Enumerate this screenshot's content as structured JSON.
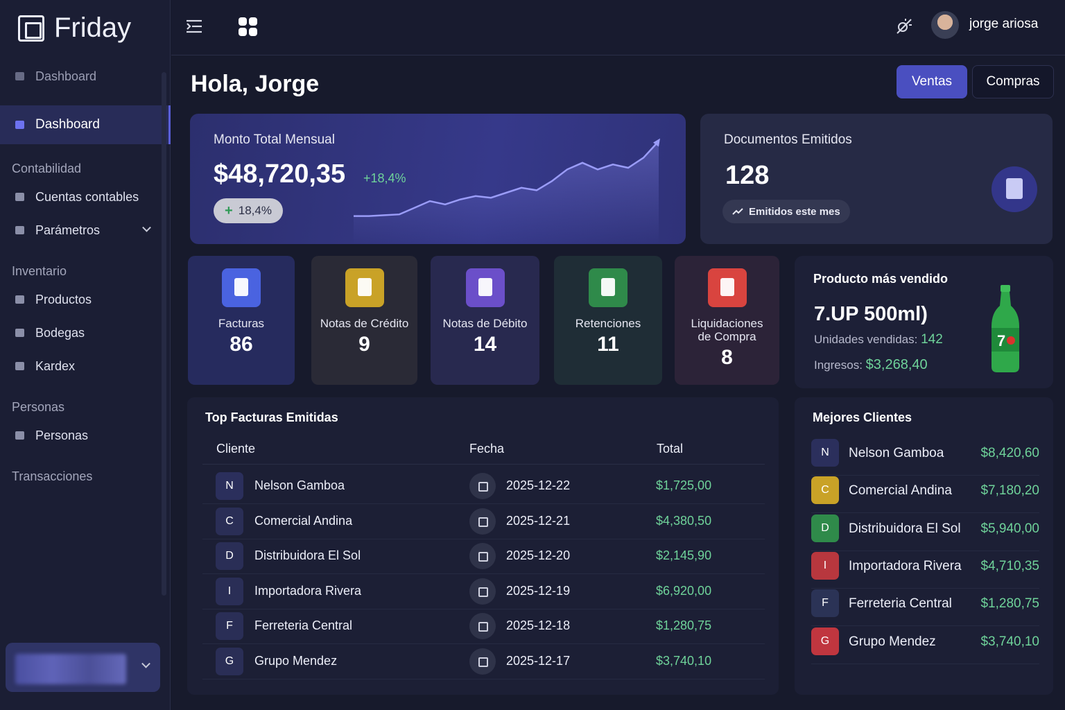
{
  "brand": "Friday",
  "sidebar": {
    "top": "Dashboard",
    "active": "Dashboard",
    "groups": [
      {
        "title": "Contabilidad",
        "items": [
          "Cuentas contables",
          "Parámetros"
        ]
      },
      {
        "title": "Inventario",
        "items": [
          "Productos",
          "Bodegas",
          "Kardex"
        ]
      },
      {
        "title": "Personas",
        "items": [
          "Personas"
        ]
      },
      {
        "title": "Transacciones",
        "items": []
      }
    ]
  },
  "topbar": {
    "user": "jorge ariosa"
  },
  "header": {
    "greeting": "Hola, Jorge",
    "tabs": [
      "Ventas",
      "Compras"
    ]
  },
  "monthly_card": {
    "title": "Monto Total Mensual",
    "amount": "$48,720,35",
    "change": "+18,4%",
    "badge": "18,4%",
    "trend": [
      2,
      2,
      3,
      4,
      12,
      20,
      16,
      22,
      26,
      24,
      30,
      36,
      33,
      44,
      58,
      66,
      58,
      64,
      60,
      72,
      92
    ],
    "trend_ylim": [
      0,
      100
    ]
  },
  "documents_card": {
    "title": "Documentos Emitidos",
    "count": "128",
    "note": "Emitidos este mes"
  },
  "stats": [
    {
      "label": "Facturas",
      "value": "86"
    },
    {
      "label": "Notas de Crédito",
      "value": "9"
    },
    {
      "label": "Notas de Débito",
      "value": "14"
    },
    {
      "label": "Retenciones",
      "value": "11"
    },
    {
      "label": "Liquidaciones de Compra",
      "value": "8"
    }
  ],
  "top_product": {
    "title": "Producto más vendido",
    "name": "7.UP 500ml)",
    "units_label": "Unidades vendidas:",
    "units": "142",
    "revenue_label": "Ingresos:",
    "revenue": "$3,268,40"
  },
  "invoices": {
    "title": "Top Facturas Emitidas",
    "columns": [
      "Cliente",
      "Fecha",
      "Total"
    ],
    "rows": [
      [
        "N",
        "Nelson Gamboa",
        "2025-12-22",
        "$1,725,00"
      ],
      [
        "C",
        "Comercial Andina",
        "2025-12-21",
        "$4,380,50"
      ],
      [
        "D",
        "Distribuidora El Sol",
        "2025-12-20",
        "$2,145,90"
      ],
      [
        "I",
        "Importadora Rivera",
        "2025-12-19",
        "$6,920,00"
      ],
      [
        "F",
        "Ferreteria Central",
        "2025-12-18",
        "$1,280,75"
      ],
      [
        "G",
        "Grupo Mendez",
        "2025-12-17",
        "$3,740,10"
      ]
    ]
  },
  "clients": {
    "title": "Mejores Clientes",
    "rows": [
      [
        "N",
        "Nelson Gamboa",
        "$8,420,60"
      ],
      [
        "C",
        "Comercial Andina",
        "$7,180,20"
      ],
      [
        "D",
        "Distribuidora El Sol",
        "$5,940,00"
      ],
      [
        "I",
        "Importadora Rivera",
        "$4,710,35"
      ],
      [
        "F",
        "Ferreteria Central",
        "$1,280,75"
      ],
      [
        "G",
        "Grupo Mendez",
        "$3,740,10"
      ]
    ]
  }
}
